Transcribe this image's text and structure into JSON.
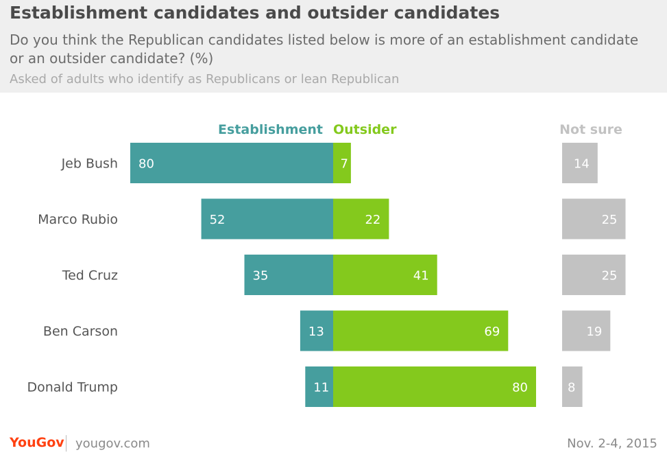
{
  "header": {
    "title": "Establishment candidates and outsider candidates",
    "subtitle": "Do you think the Republican candidates listed below is more of an establishment candidate or an outsider candidate? (%)",
    "note": "Asked of adults who identify as Republicans or lean Republican"
  },
  "footer": {
    "logo": "YouGov",
    "site": "yougov.com",
    "date": "Nov. 2-4, 2015"
  },
  "colors": {
    "establishment": "#469e9e",
    "outsider": "#84c91d",
    "not_sure": "#c2c2c2",
    "label": "#555555",
    "logo": "#ff4111"
  },
  "chart_data": {
    "type": "bar",
    "orientation": "horizontal",
    "layout": "diverging",
    "categories": [
      "Jeb Bush",
      "Marco Rubio",
      "Ted Cruz",
      "Ben Carson",
      "Donald Trump"
    ],
    "series": [
      {
        "name": "Establishment",
        "values": [
          80,
          52,
          35,
          13,
          11
        ]
      },
      {
        "name": "Outsider",
        "values": [
          7,
          22,
          41,
          69,
          80
        ]
      },
      {
        "name": "Not sure",
        "values": [
          14,
          25,
          25,
          19,
          8
        ]
      }
    ]
  }
}
